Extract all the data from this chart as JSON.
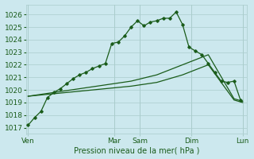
{
  "xlabel": "Pression niveau de la mer( hPa )",
  "bg_color": "#cce8ee",
  "grid_color": "#aacccc",
  "line_color": "#1a5c1a",
  "ylim": [
    1016.5,
    1026.8
  ],
  "day_labels": [
    "Ven",
    "Mar",
    "Sam",
    "Dim",
    "Lun"
  ],
  "day_positions": [
    0,
    40,
    52,
    76,
    100
  ],
  "series1_x": [
    0,
    3,
    6,
    9,
    12,
    15,
    18,
    21,
    24,
    27,
    30,
    33,
    36,
    39,
    42,
    45,
    48,
    51,
    54,
    57,
    60,
    63,
    66,
    69,
    72,
    75,
    78,
    81,
    84,
    87,
    90,
    93,
    96,
    99
  ],
  "series1_y": [
    1017.2,
    1017.8,
    1018.3,
    1019.4,
    1019.8,
    1020.1,
    1020.5,
    1020.9,
    1021.2,
    1021.4,
    1021.7,
    1021.9,
    1022.1,
    1023.7,
    1023.8,
    1024.3,
    1025.0,
    1025.5,
    1025.1,
    1025.4,
    1025.5,
    1025.7,
    1025.7,
    1026.2,
    1025.2,
    1023.4,
    1023.1,
    1022.8,
    1022.1,
    1021.4,
    1020.7,
    1020.6,
    1020.7,
    1019.2
  ],
  "series2_x": [
    0,
    12,
    24,
    36,
    48,
    60,
    72,
    84,
    96,
    100
  ],
  "series2_y": [
    1019.5,
    1019.8,
    1020.1,
    1020.4,
    1020.7,
    1021.2,
    1022.0,
    1022.8,
    1019.3,
    1019.1
  ],
  "series3_x": [
    0,
    12,
    24,
    36,
    48,
    60,
    72,
    84,
    96,
    100
  ],
  "series3_y": [
    1019.5,
    1019.7,
    1019.9,
    1020.1,
    1020.3,
    1020.6,
    1021.2,
    1022.0,
    1019.2,
    1019.0
  ]
}
